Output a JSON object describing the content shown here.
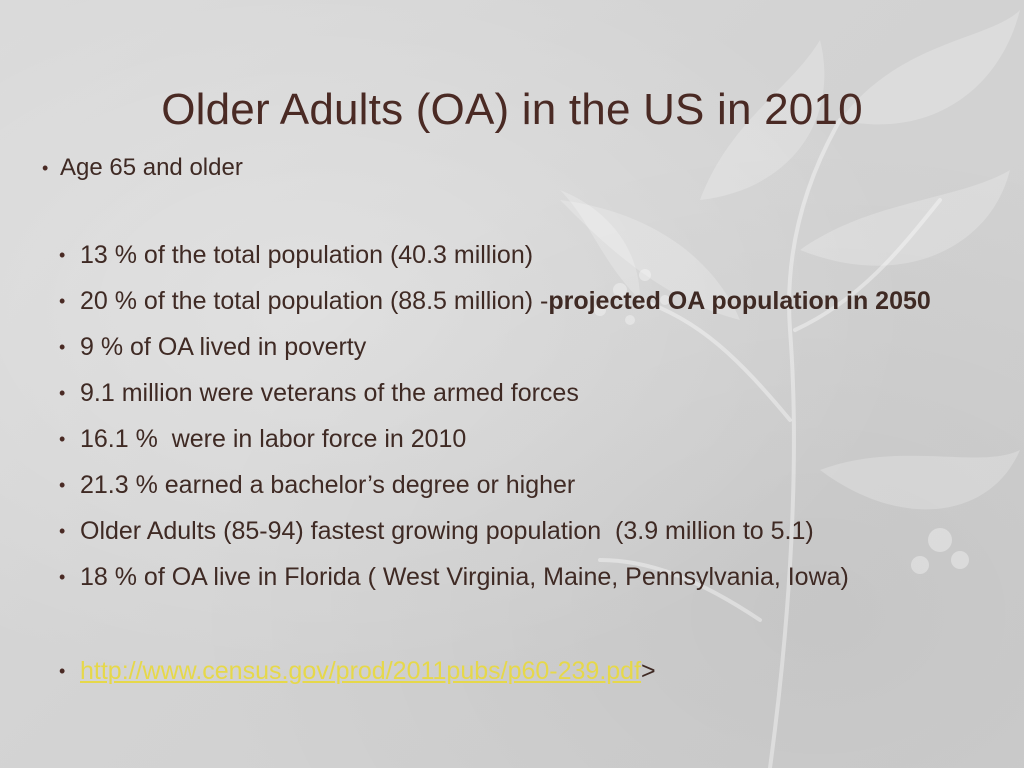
{
  "slide": {
    "title": "Older Adults (OA) in the US in 2010",
    "level1_item": "Age 65 and older",
    "bullets": [
      {
        "text": "13 % of the total population (40.3 million)"
      },
      {
        "text": "20 % of the total population (88.5 million) -",
        "bold": "projected OA population in 2050"
      },
      {
        "text": "9 % of OA lived in poverty"
      },
      {
        "text": "9.1 million were veterans of the armed forces"
      },
      {
        "text": "16.1 %  were in labor force in 2010"
      },
      {
        "text": "21.3 % earned a bachelor’s degree or higher"
      },
      {
        "text": "Older Adults (85-94) fastest growing population  (3.9 million to 5.1)"
      },
      {
        "text": "18 % of OA live in Florida ( West Virginia, Maine, Pennsylvania, Iowa)"
      }
    ],
    "source_link": "http://www.census.gov/prod/2011pubs/p60-239.pdf",
    "source_suffix": ">"
  },
  "bullet_glyph": "•",
  "colors": {
    "text": "#3f2a24",
    "title": "#4a2a24",
    "link": "#e6d84a",
    "background": "#d6d6d6"
  }
}
